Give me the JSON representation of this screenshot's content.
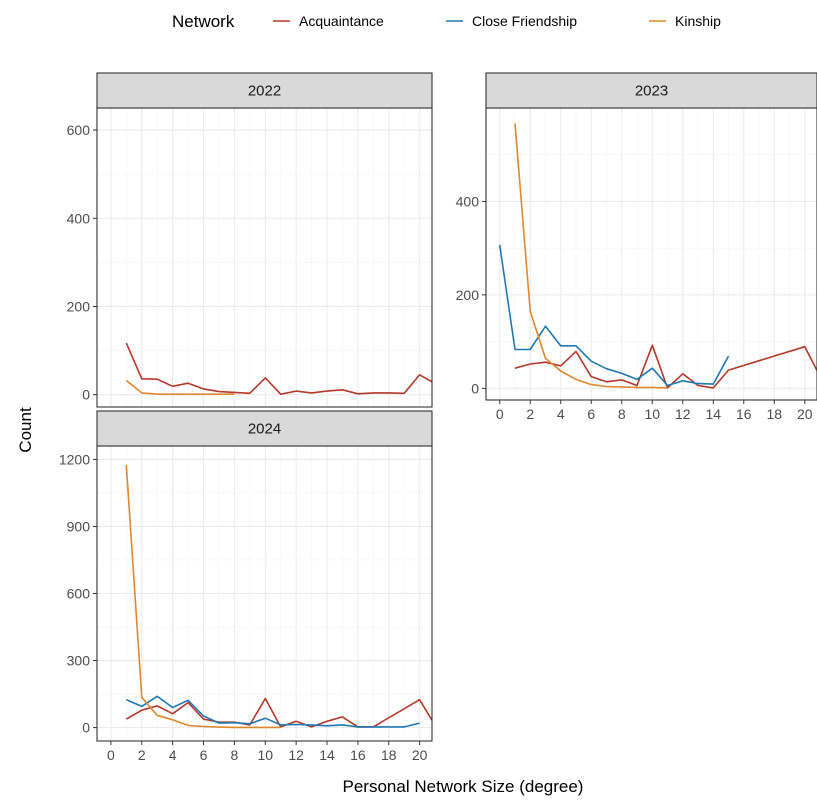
{
  "chart_data": {
    "type": "line",
    "xlabel": "Personal Network Size (degree)",
    "ylabel": "Count",
    "legend": {
      "title": "Network",
      "placement": "top",
      "entries": [
        {
          "name": "Acquaintance",
          "color": "#B5382A"
        },
        {
          "name": "Close Friendship",
          "color": "#1F78B4"
        },
        {
          "name": "Kinship",
          "color": "#E0872F"
        }
      ]
    },
    "grid": true,
    "panels": [
      {
        "title": "2022",
        "xlim": [
          -0.9,
          20.8
        ],
        "ylim": [
          -28,
          650
        ],
        "yticks": [
          0,
          200,
          400,
          600
        ],
        "xticks": [],
        "series": [
          {
            "name": "Acquaintance",
            "x": [
              1,
              2,
              3,
              4,
              5,
              6,
              7,
              8,
              9,
              10,
              11,
              12,
              13,
              14,
              15,
              16,
              17,
              18,
              19,
              20,
              21
            ],
            "y": [
              117,
              36,
              35,
              19,
              26,
              13,
              7,
              5,
              3,
              38,
              1,
              8,
              4,
              8,
              11,
              2,
              4,
              4,
              3,
              45,
              25
            ]
          },
          {
            "name": "Kinship",
            "x": [
              1,
              2,
              3,
              4,
              5,
              6,
              7,
              8
            ],
            "y": [
              32,
              4,
              1,
              1,
              1,
              1,
              1,
              1
            ]
          }
        ]
      },
      {
        "title": "2023",
        "xlim": [
          -0.9,
          20.8
        ],
        "ylim": [
          -25,
          600
        ],
        "yticks": [
          0,
          200,
          400
        ],
        "xticks": [
          0,
          2,
          4,
          6,
          8,
          10,
          12,
          14,
          16,
          18,
          20
        ],
        "series": [
          {
            "name": "Acquaintance",
            "x": [
              1,
              2,
              3,
              4,
              5,
              6,
              7,
              8,
              9,
              10,
              11,
              12,
              13,
              14,
              15,
              20,
              21
            ],
            "y": [
              43,
              52,
              56,
              48,
              79,
              25,
              14,
              18,
              6,
              92,
              1,
              31,
              6,
              1,
              39,
              89,
              25
            ]
          },
          {
            "name": "Close Friendship",
            "x": [
              0,
              1,
              2,
              3,
              4,
              5,
              6,
              7,
              8,
              9,
              10,
              11,
              12,
              13,
              14,
              15
            ],
            "y": [
              307,
              83,
              83,
              133,
              91,
              91,
              58,
              42,
              32,
              19,
              43,
              6,
              16,
              10,
              9,
              69
            ]
          },
          {
            "name": "Kinship",
            "x": [
              1,
              2,
              3,
              4,
              5,
              6,
              7,
              8,
              9,
              10,
              11
            ],
            "y": [
              567,
              165,
              64,
              37,
              19,
              8,
              4,
              3,
              2,
              2,
              1
            ]
          }
        ]
      },
      {
        "title": "2024",
        "xlim": [
          -0.9,
          20.8
        ],
        "ylim": [
          -60,
          1260
        ],
        "yticks": [
          0,
          300,
          600,
          900,
          1200
        ],
        "xticks": [
          0,
          2,
          4,
          6,
          8,
          10,
          12,
          14,
          16,
          18,
          20
        ],
        "series": [
          {
            "name": "Acquaintance",
            "x": [
              1,
              2,
              3,
              4,
              5,
              6,
              7,
              8,
              9,
              10,
              11,
              12,
              13,
              14,
              15,
              16,
              17,
              20,
              21
            ],
            "y": [
              38,
              78,
              97,
              62,
              112,
              38,
              24,
              24,
              12,
              130,
              3,
              28,
              3,
              28,
              48,
              3,
              3,
              125,
              10
            ]
          },
          {
            "name": "Close Friendship",
            "x": [
              1,
              2,
              3,
              4,
              5,
              6,
              7,
              8,
              9,
              10,
              11,
              12,
              13,
              14,
              15,
              16,
              17,
              18,
              19,
              20
            ],
            "y": [
              125,
              95,
              140,
              90,
              122,
              52,
              20,
              22,
              17,
              42,
              12,
              14,
              12,
              8,
              12,
              3,
              3,
              3,
              3,
              20
            ]
          },
          {
            "name": "Kinship",
            "x": [
              1,
              2,
              3,
              4,
              5,
              6,
              7,
              8,
              9,
              10,
              11
            ],
            "y": [
              1175,
              135,
              55,
              35,
              10,
              5,
              2,
              1,
              1,
              1,
              1
            ]
          }
        ]
      }
    ]
  }
}
